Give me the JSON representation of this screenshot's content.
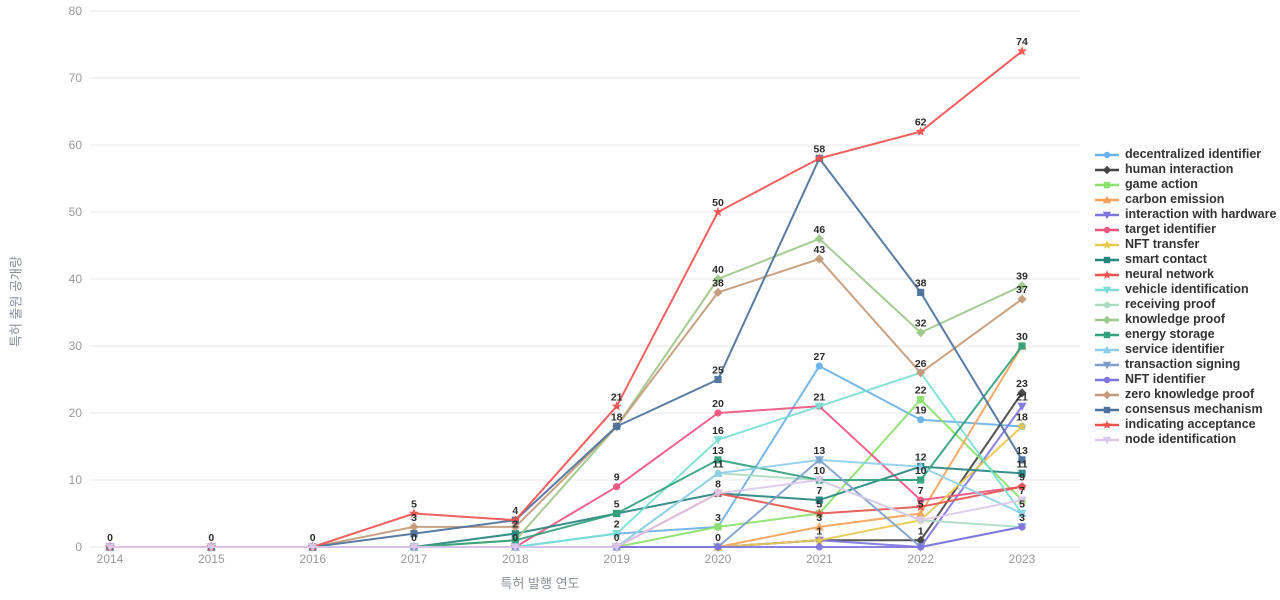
{
  "chart_data": {
    "type": "line",
    "title": "",
    "xlabel": "특허 발행 연도",
    "ylabel": "특허 출원 공개량",
    "categories": [
      "2014",
      "2015",
      "2016",
      "2017",
      "2018",
      "2019",
      "2020",
      "2021",
      "2022",
      "2023"
    ],
    "ylim": [
      0,
      80
    ],
    "yticks": [
      0,
      10,
      20,
      30,
      40,
      50,
      60,
      70,
      80
    ],
    "grid": "horizontal",
    "legend_position": "right",
    "data_labels": true,
    "axis_tick_color": "#999999",
    "grid_color": "#e8e8e8",
    "label_color": "#2b2b2b",
    "series": [
      {
        "name": "decentralized identifier",
        "color": "#6CB1E8",
        "symbol": "circle",
        "values": [
          0,
          0,
          0,
          0,
          0,
          2,
          3,
          27,
          19,
          18
        ]
      },
      {
        "name": "human interaction",
        "color": "#454545",
        "symbol": "diamond",
        "values": [
          0,
          0,
          0,
          0,
          0,
          0,
          0,
          1,
          1,
          23
        ]
      },
      {
        "name": "game action",
        "color": "#8CE06E",
        "symbol": "square",
        "values": [
          0,
          0,
          0,
          0,
          0,
          0,
          3,
          5,
          22,
          7
        ]
      },
      {
        "name": "carbon emission",
        "color": "#F7A35B",
        "symbol": "triangle-up",
        "values": [
          0,
          0,
          0,
          0,
          0,
          0,
          0,
          3,
          5,
          30
        ]
      },
      {
        "name": "interaction with hardware",
        "color": "#8176E0",
        "symbol": "triangle-down",
        "values": [
          0,
          0,
          0,
          0,
          0,
          0,
          0,
          1,
          0,
          21
        ]
      },
      {
        "name": "target identifier",
        "color": "#ED5581",
        "symbol": "circle",
        "values": [
          0,
          0,
          0,
          0,
          0,
          9,
          20,
          21,
          7,
          9
        ]
      },
      {
        "name": "NFT transfer",
        "color": "#E8C84F",
        "symbol": "star",
        "values": [
          0,
          0,
          0,
          0,
          0,
          0,
          0,
          1,
          4,
          18
        ]
      },
      {
        "name": "smart contact",
        "color": "#27857F",
        "symbol": "square",
        "values": [
          0,
          0,
          0,
          0,
          2,
          5,
          8,
          7,
          12,
          11
        ]
      },
      {
        "name": "neural network",
        "color": "#E65550",
        "symbol": "star",
        "values": [
          0,
          0,
          0,
          0,
          0,
          0,
          8,
          5,
          6,
          9
        ]
      },
      {
        "name": "vehicle identification",
        "color": "#7ADED2",
        "symbol": "triangle-down",
        "values": [
          0,
          0,
          0,
          0,
          0,
          2,
          16,
          21,
          26,
          5
        ]
      },
      {
        "name": "receiving proof",
        "color": "#ABDBC3",
        "symbol": "circle",
        "values": [
          0,
          0,
          0,
          0,
          0,
          0,
          11,
          10,
          4,
          3
        ]
      },
      {
        "name": "knowledge proof",
        "color": "#9DC78B",
        "symbol": "diamond",
        "values": [
          0,
          0,
          0,
          0,
          1,
          18,
          40,
          46,
          32,
          39
        ]
      },
      {
        "name": "energy storage",
        "color": "#33A17C",
        "symbol": "square",
        "values": [
          0,
          0,
          0,
          0,
          1,
          5,
          13,
          10,
          10,
          30
        ]
      },
      {
        "name": "service identifier",
        "color": "#8ECFE8",
        "symbol": "triangle-up",
        "values": [
          0,
          0,
          0,
          0,
          0,
          0,
          11,
          13,
          12,
          5
        ]
      },
      {
        "name": "transaction signing",
        "color": "#7E9FCC",
        "symbol": "triangle-down",
        "values": [
          0,
          0,
          0,
          0,
          0,
          0,
          0,
          13,
          0,
          3
        ]
      },
      {
        "name": "NFT identifier",
        "color": "#7F75DE",
        "symbol": "circle",
        "values": [
          0,
          0,
          0,
          0,
          0,
          0,
          0,
          0,
          0,
          3
        ]
      },
      {
        "name": "zero knowledge proof",
        "color": "#C49A78",
        "symbol": "diamond",
        "values": [
          0,
          0,
          0,
          3,
          3,
          18,
          38,
          43,
          26,
          37
        ]
      },
      {
        "name": "consensus mechanism",
        "color": "#4C719B",
        "symbol": "square",
        "values": [
          0,
          0,
          0,
          2,
          4,
          18,
          25,
          58,
          38,
          13
        ]
      },
      {
        "name": "indicating acceptance",
        "color": "#F15351",
        "symbol": "star",
        "values": [
          0,
          0,
          0,
          5,
          4,
          21,
          50,
          58,
          62,
          74
        ]
      },
      {
        "name": "node identification",
        "color": "#DCC9EA",
        "symbol": "triangle-down",
        "values": [
          0,
          0,
          0,
          0,
          0,
          0,
          8,
          10,
          4,
          7
        ]
      }
    ]
  }
}
